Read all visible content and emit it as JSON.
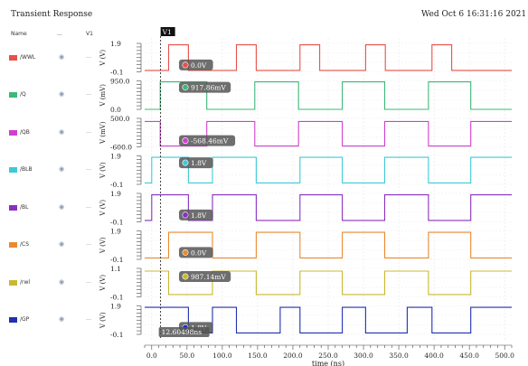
{
  "window": {
    "title": "Transient Response",
    "datetime": "Wed Oct 6 16:31:16 2021  1"
  },
  "browser": {
    "name_header": "Name",
    "menu_header": "...",
    "vis_header": "V1"
  },
  "chart_data": {
    "type": "line",
    "xlabel": "time (ns)",
    "xlim": [
      -10,
      510
    ],
    "xticks": [
      "0.0",
      "50.0",
      "100.0",
      "150.0",
      "200.0",
      "250.0",
      "300.0",
      "350.0",
      "400.0",
      "450.0",
      "500.0"
    ],
    "xtick_values": [
      0,
      50,
      100,
      150,
      200,
      250,
      300,
      350,
      400,
      450,
      500
    ],
    "cursor": {
      "name": "V1",
      "x_ns": 12.60498,
      "x_label": "12.60498ns"
    },
    "series": [
      {
        "name": "/WWL",
        "color": "#e8504a",
        "ylabel": "V (V)",
        "yticks": [
          "1.9",
          "-0.1"
        ],
        "ylim": [
          -0.1,
          1.9
        ],
        "low": 0.0,
        "high": 1.8,
        "points": [
          [
            -10,
            0
          ],
          [
            24,
            0
          ],
          [
            24,
            1.8
          ],
          [
            52,
            1.8
          ],
          [
            52,
            0
          ],
          [
            120,
            0
          ],
          [
            120,
            1.8
          ],
          [
            148,
            1.8
          ],
          [
            148,
            0
          ],
          [
            210,
            0
          ],
          [
            210,
            1.8
          ],
          [
            238,
            1.8
          ],
          [
            238,
            0
          ],
          [
            303,
            0
          ],
          [
            303,
            1.8
          ],
          [
            331,
            1.8
          ],
          [
            331,
            0
          ],
          [
            397,
            0
          ],
          [
            397,
            1.8
          ],
          [
            425,
            1.8
          ],
          [
            425,
            0
          ],
          [
            510,
            0
          ]
        ],
        "marker": "0.0V"
      },
      {
        "name": "/Q",
        "color": "#3cb878",
        "ylabel": "V (mV)",
        "yticks": [
          "950.0",
          "0.0"
        ],
        "ylim": [
          0,
          950
        ],
        "low": 0,
        "high": 917.86,
        "points": [
          [
            -10,
            0
          ],
          [
            12,
            0
          ],
          [
            12,
            917.86
          ],
          [
            78,
            917.86
          ],
          [
            78,
            0
          ],
          [
            146,
            0
          ],
          [
            146,
            917.86
          ],
          [
            208,
            917.86
          ],
          [
            208,
            0
          ],
          [
            270,
            0
          ],
          [
            270,
            917.86
          ],
          [
            330,
            917.86
          ],
          [
            330,
            0
          ],
          [
            392,
            0
          ],
          [
            392,
            917.86
          ],
          [
            452,
            917.86
          ],
          [
            452,
            0
          ],
          [
            510,
            0
          ]
        ],
        "marker": "917.86mV"
      },
      {
        "name": "/QB",
        "color": "#d040d0",
        "ylabel": "V (mV)",
        "yticks": [
          "500.0",
          "-600.0"
        ],
        "ylim": [
          -600,
          500
        ],
        "low": -568.46,
        "high": 380,
        "points": [
          [
            -10,
            380
          ],
          [
            12,
            380
          ],
          [
            12,
            -568.46
          ],
          [
            78,
            -568.46
          ],
          [
            78,
            380
          ],
          [
            146,
            380
          ],
          [
            146,
            -568.46
          ],
          [
            208,
            -568.46
          ],
          [
            208,
            380
          ],
          [
            270,
            380
          ],
          [
            270,
            -568.46
          ],
          [
            330,
            -568.46
          ],
          [
            330,
            380
          ],
          [
            392,
            380
          ],
          [
            392,
            -568.46
          ],
          [
            452,
            -568.46
          ],
          [
            452,
            380
          ],
          [
            510,
            380
          ]
        ],
        "marker": "-568.46mV"
      },
      {
        "name": "/BLB",
        "color": "#40c8d8",
        "ylabel": "V (V)",
        "yticks": [
          "1.9",
          "-0.1"
        ],
        "ylim": [
          -0.1,
          1.9
        ],
        "low": 0.0,
        "high": 1.8,
        "points": [
          [
            -10,
            0
          ],
          [
            0,
            0
          ],
          [
            0,
            1.8
          ],
          [
            52,
            1.8
          ],
          [
            52,
            0
          ],
          [
            86,
            0
          ],
          [
            86,
            1.8
          ],
          [
            148,
            1.8
          ],
          [
            148,
            0
          ],
          [
            210,
            0
          ],
          [
            210,
            1.8
          ],
          [
            270,
            1.8
          ],
          [
            270,
            0
          ],
          [
            330,
            0
          ],
          [
            330,
            1.8
          ],
          [
            392,
            1.8
          ],
          [
            392,
            0
          ],
          [
            452,
            0
          ],
          [
            452,
            1.8
          ],
          [
            510,
            1.8
          ]
        ],
        "marker": "1.8V"
      },
      {
        "name": "/BL",
        "color": "#8a30c0",
        "ylabel": "V (V)",
        "yticks": [
          "1.9",
          "-0.1"
        ],
        "ylim": [
          -0.1,
          1.9
        ],
        "low": 0.0,
        "high": 1.8,
        "points": [
          [
            -10,
            0
          ],
          [
            0,
            0
          ],
          [
            0,
            1.8
          ],
          [
            52,
            1.8
          ],
          [
            52,
            0
          ],
          [
            86,
            0
          ],
          [
            86,
            1.8
          ],
          [
            148,
            1.8
          ],
          [
            148,
            0
          ],
          [
            210,
            0
          ],
          [
            210,
            1.8
          ],
          [
            270,
            1.8
          ],
          [
            270,
            0
          ],
          [
            330,
            0
          ],
          [
            330,
            1.8
          ],
          [
            392,
            1.8
          ],
          [
            392,
            0
          ],
          [
            452,
            0
          ],
          [
            452,
            1.8
          ],
          [
            510,
            1.8
          ]
        ],
        "marker": "1.8V"
      },
      {
        "name": "/CS",
        "color": "#e88a30",
        "ylabel": "V (V)",
        "yticks": [
          "1.9",
          "-0.1"
        ],
        "ylim": [
          -0.1,
          1.9
        ],
        "low": 0.0,
        "high": 1.8,
        "points": [
          [
            -10,
            0
          ],
          [
            24,
            0
          ],
          [
            24,
            1.8
          ],
          [
            86,
            1.8
          ],
          [
            86,
            0
          ],
          [
            148,
            0
          ],
          [
            148,
            1.8
          ],
          [
            210,
            1.8
          ],
          [
            210,
            0
          ],
          [
            270,
            0
          ],
          [
            270,
            1.8
          ],
          [
            330,
            1.8
          ],
          [
            330,
            0
          ],
          [
            392,
            0
          ],
          [
            392,
            1.8
          ],
          [
            452,
            1.8
          ],
          [
            452,
            0
          ],
          [
            510,
            0
          ]
        ],
        "marker": "0.0V"
      },
      {
        "name": "/rwl",
        "color": "#c8b830",
        "ylabel": "V (V)",
        "yticks": [
          "1.1",
          "-0.1"
        ],
        "ylim": [
          -0.1,
          1.1
        ],
        "low": 0.0,
        "high": 0.98714,
        "points": [
          [
            -10,
            0.98714
          ],
          [
            24,
            0.98714
          ],
          [
            24,
            0
          ],
          [
            86,
            0
          ],
          [
            86,
            0.98714
          ],
          [
            148,
            0.98714
          ],
          [
            148,
            0
          ],
          [
            210,
            0
          ],
          [
            210,
            0.98714
          ],
          [
            270,
            0.98714
          ],
          [
            270,
            0
          ],
          [
            330,
            0
          ],
          [
            330,
            0.98714
          ],
          [
            392,
            0.98714
          ],
          [
            392,
            0
          ],
          [
            452,
            0
          ],
          [
            452,
            0.98714
          ],
          [
            510,
            0.98714
          ]
        ],
        "marker": "987.14mV"
      },
      {
        "name": "/GP",
        "color": "#2030b0",
        "ylabel": "V (V)",
        "yticks": [
          "1.9",
          "-0.1"
        ],
        "ylim": [
          -0.1,
          1.9
        ],
        "low": 0.0,
        "high": 1.8,
        "points": [
          [
            -10,
            1.8
          ],
          [
            52,
            1.8
          ],
          [
            52,
            0
          ],
          [
            86,
            0
          ],
          [
            86,
            1.8
          ],
          [
            120,
            1.8
          ],
          [
            120,
            0
          ],
          [
            182,
            0
          ],
          [
            182,
            1.8
          ],
          [
            210,
            1.8
          ],
          [
            210,
            0
          ],
          [
            270,
            0
          ],
          [
            270,
            1.8
          ],
          [
            303,
            1.8
          ],
          [
            303,
            0
          ],
          [
            362,
            0
          ],
          [
            362,
            1.8
          ],
          [
            397,
            1.8
          ],
          [
            397,
            0
          ],
          [
            452,
            0
          ],
          [
            452,
            1.8
          ],
          [
            510,
            1.8
          ]
        ],
        "marker": "1.8V"
      }
    ]
  }
}
